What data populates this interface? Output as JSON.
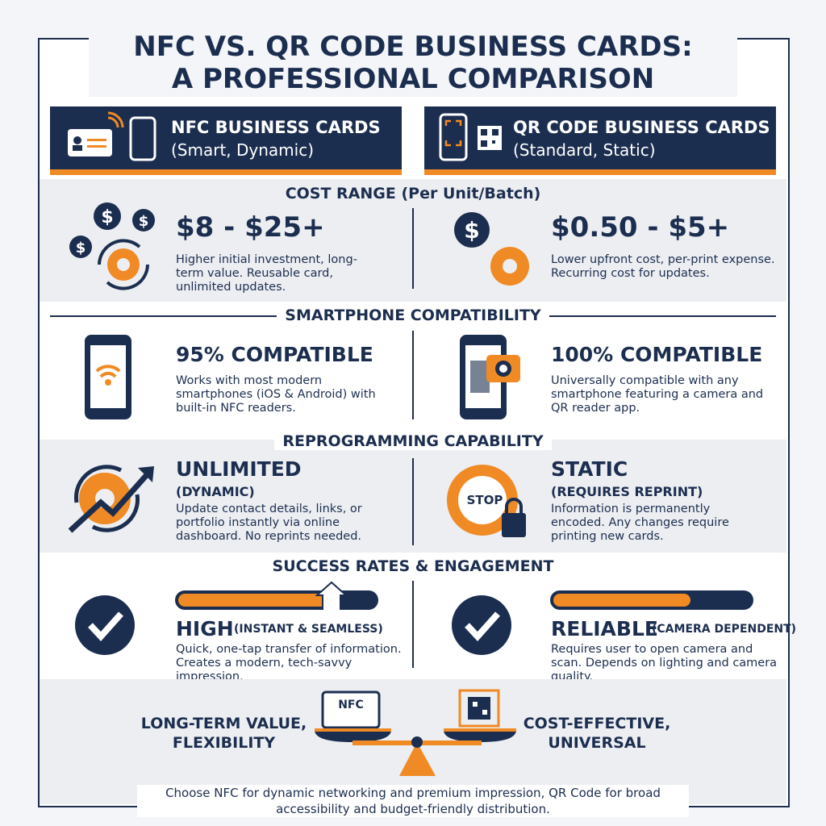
{
  "header": {
    "title_line1": "NFC VS. QR CODE BUSINESS CARDS:",
    "title_line2": "A PROFESSIONAL COMPARISON"
  },
  "columns": {
    "nfc": {
      "title": "NFC BUSINESS CARDS",
      "subtitle": "(Smart, Dynamic)"
    },
    "qr": {
      "title": "QR CODE BUSINESS CARDS",
      "subtitle": "(Standard, Static)"
    }
  },
  "sections": [
    {
      "heading": "COST RANGE (Per Unit/Batch)",
      "nfc": {
        "headline": "$8 - $25+",
        "text": "Higher initial investment, long-term value. Reusable card, unlimited updates."
      },
      "qr": {
        "headline": "$0.50 - $5+",
        "text": "Lower upfront cost, per-print expense. Recurring cost for updates."
      }
    },
    {
      "heading": "SMARTPHONE COMPATIBILITY",
      "nfc": {
        "headline": "95% COMPATIBLE",
        "text": "Works with most modern smartphones (iOS & Android) with built-in NFC readers."
      },
      "qr": {
        "headline": "100% COMPATIBLE",
        "text": "Universally compatible with any smartphone featuring a camera and QR reader app."
      }
    },
    {
      "heading": "REPROGRAMMING CAPABILITY",
      "nfc": {
        "headline": "UNLIMITED",
        "sub": "(DYNAMIC)",
        "text": "Update contact details, links, or portfolio instantly via online dashboard. No reprints needed."
      },
      "qr": {
        "headline": "STATIC",
        "sub": "(REQUIRES REPRINT)",
        "icon_label": "STOP",
        "text": "Information is permanently encoded. Any changes require printing new cards."
      }
    },
    {
      "heading": "SUCCESS RATES & ENGAGEMENT",
      "nfc": {
        "headline": "HIGH",
        "sub": "(INSTANT & SEAMLESS)",
        "text": "Quick, one-tap transfer of information. Creates a modern, tech-savvy impression."
      },
      "qr": {
        "headline": "RELIABLE",
        "sub": "(CAMERA DEPENDENT)",
        "text": "Requires user to open camera and scan. Depends on lighting and camera quality."
      }
    }
  ],
  "footer": {
    "nfc_label": "LONG-TERM VALUE, FLEXIBILITY",
    "nfc_icon_label": "NFC",
    "qr_label": "COST-EFFECTIVE, UNIVERSAL",
    "conclusion": "Choose NFC for dynamic networking and premium impression, QR Code for broad accessibility and budget-friendly distribution."
  }
}
